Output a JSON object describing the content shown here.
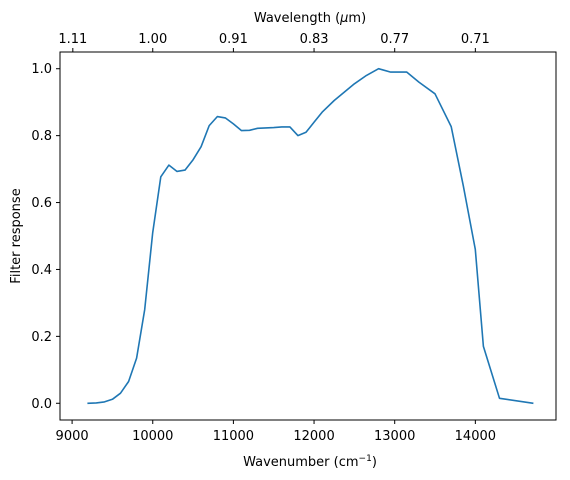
{
  "chart_data": {
    "type": "line",
    "xlabel_main": "Wavenumber (cm",
    "xlabel_sup": "−1",
    "xlabel_close": ")",
    "ylabel": "Filter response",
    "top_label_main": "Wavelength (",
    "top_label_mu": "μ",
    "top_label_close": "m)",
    "xlim": [
      8850,
      15000
    ],
    "ylim": [
      -0.05,
      1.05
    ],
    "x_ticks": [
      9000,
      10000,
      11000,
      12000,
      13000,
      14000
    ],
    "y_ticks": [
      0.0,
      0.2,
      0.4,
      0.6,
      0.8,
      1.0
    ],
    "y_tick_labels": [
      "0.0",
      "0.2",
      "0.4",
      "0.6",
      "0.8",
      "1.0"
    ],
    "top_ticks": [
      {
        "label": "1.11",
        "wavenumber": 9009
      },
      {
        "label": "1.00",
        "wavenumber": 10000
      },
      {
        "label": "0.91",
        "wavenumber": 11000
      },
      {
        "label": "0.83",
        "wavenumber": 12000
      },
      {
        "label": "0.77",
        "wavenumber": 13000
      },
      {
        "label": "0.71",
        "wavenumber": 14000
      }
    ],
    "line_color": "#1f77b4",
    "grid": false,
    "series": [
      {
        "x": [
          9190,
          9300,
          9400,
          9500,
          9600,
          9700,
          9800,
          9900,
          10000,
          10100,
          10200,
          10300,
          10400,
          10500,
          10600,
          10700,
          10800,
          10900,
          11000,
          11100,
          11200,
          11300,
          11400,
          11500,
          11600,
          11700,
          11800,
          11900,
          12000,
          12100,
          12250,
          12500,
          12650,
          12800,
          12950,
          13150,
          13300,
          13500,
          13700,
          13850,
          14000,
          14100,
          14300,
          14720
        ],
        "y": [
          0.0,
          0.001,
          0.004,
          0.012,
          0.03,
          0.065,
          0.135,
          0.28,
          0.51,
          0.677,
          0.712,
          0.693,
          0.697,
          0.728,
          0.767,
          0.83,
          0.857,
          0.853,
          0.835,
          0.815,
          0.816,
          0.822,
          0.823,
          0.824,
          0.826,
          0.826,
          0.8,
          0.81,
          0.84,
          0.87,
          0.905,
          0.955,
          0.98,
          1.0,
          0.99,
          0.99,
          0.96,
          0.925,
          0.827,
          0.65,
          0.46,
          0.17,
          0.015,
          0.0
        ]
      }
    ]
  }
}
